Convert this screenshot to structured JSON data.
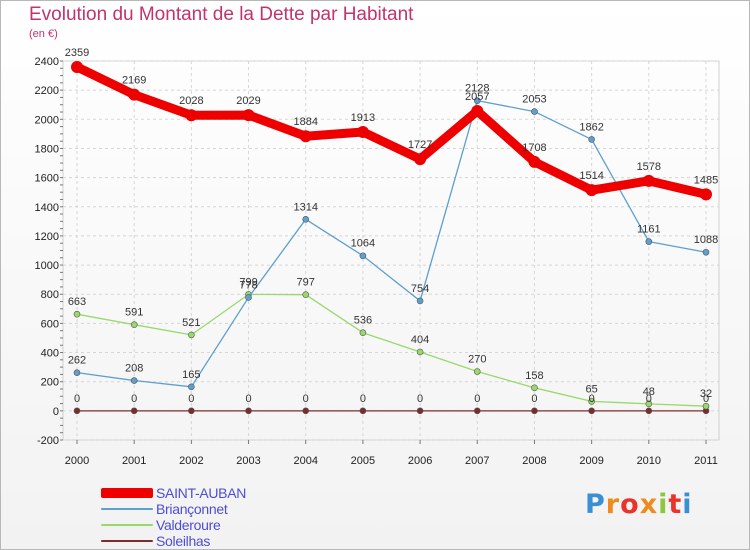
{
  "header": {
    "title": "Evolution du Montant de la Dette par Habitant",
    "subtitle": "(en €)"
  },
  "logo": {
    "text": "Proxiti"
  },
  "chart_data": {
    "type": "line",
    "title": "Evolution du Montant de la Dette par Habitant",
    "subtitle": "(en €)",
    "xlabel": "",
    "ylabel": "",
    "x": [
      "2000",
      "2001",
      "2002",
      "2003",
      "2004",
      "2005",
      "2006",
      "2007",
      "2008",
      "2009",
      "2010",
      "2011"
    ],
    "ylim": [
      -200,
      2400
    ],
    "yticks": [
      -200,
      0,
      200,
      400,
      600,
      800,
      1000,
      1200,
      1400,
      1600,
      1800,
      2000,
      2200,
      2400
    ],
    "grid": true,
    "legend": "bottom-left",
    "series": [
      {
        "name": "SAINT-AUBAN",
        "color": "#ee0000",
        "values": [
          2359,
          2169,
          2028,
          2029,
          1884,
          1913,
          1727,
          2057,
          1708,
          1514,
          1578,
          1485
        ]
      },
      {
        "name": "Briançonnet",
        "color": "#5d9fcf",
        "values": [
          262,
          208,
          165,
          778,
          1314,
          1064,
          754,
          2128,
          2053,
          1862,
          1161,
          1088
        ]
      },
      {
        "name": "Valderoure",
        "color": "#98d96c",
        "values": [
          663,
          591,
          521,
          799,
          797,
          536,
          404,
          270,
          158,
          65,
          48,
          32
        ]
      },
      {
        "name": "Soleilhas",
        "color": "#7b2d2d",
        "values": [
          0,
          0,
          0,
          0,
          0,
          0,
          0,
          0,
          0,
          0,
          0,
          0
        ]
      }
    ]
  }
}
